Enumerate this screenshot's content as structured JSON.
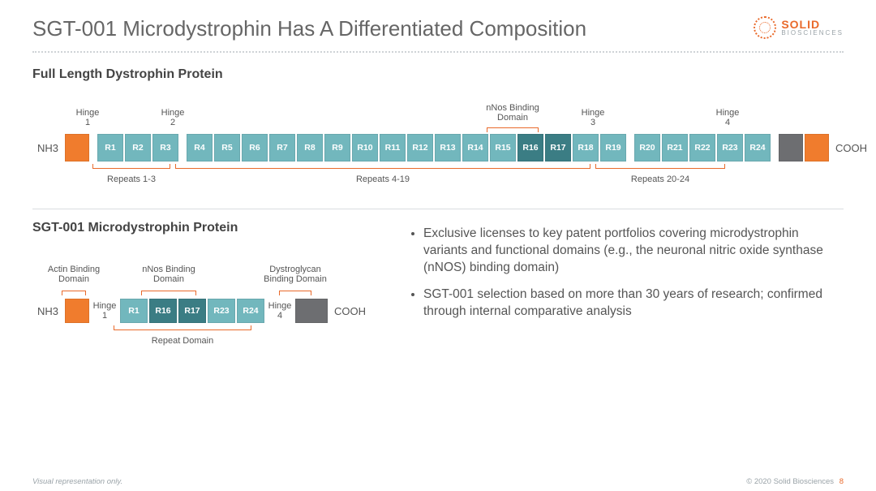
{
  "title": "SGT-001 Microdystrophin Has A Differentiated Composition",
  "logo": {
    "l1": "SOLID",
    "l2": "BIOSCIENCES"
  },
  "colors": {
    "orange": "#f07c2d",
    "grey": "#6d6e71",
    "teal": "#72b7bd",
    "teal_dark": "#3b7d84",
    "accent": "#e96a2b",
    "text": "#555555",
    "bg": "#ffffff"
  },
  "full": {
    "title": "Full Length Dystrophin Protein",
    "left_term": "NH3",
    "right_term": "COOH",
    "nnos_label": "nNos Binding Domain",
    "hinges": [
      "Hinge 1",
      "Hinge 2",
      "Hinge 3",
      "Hinge 4"
    ],
    "hinge1_lines": [
      "Hinge",
      "1"
    ],
    "hinge2_lines": [
      "Hinge",
      "2"
    ],
    "hinge3_lines": [
      "Hinge",
      "3"
    ],
    "hinge4_lines": [
      "Hinge",
      "4"
    ],
    "group_labels": [
      "Repeats 1-3",
      "Repeats 4-19",
      "Repeats 20-24"
    ],
    "repeats": [
      {
        "label": "R1",
        "dark": false
      },
      {
        "label": "R2",
        "dark": false
      },
      {
        "label": "R3",
        "dark": false
      },
      {
        "label": "R4",
        "dark": false
      },
      {
        "label": "R5",
        "dark": false
      },
      {
        "label": "R6",
        "dark": false
      },
      {
        "label": "R7",
        "dark": false
      },
      {
        "label": "R8",
        "dark": false
      },
      {
        "label": "R9",
        "dark": false
      },
      {
        "label": "R10",
        "dark": false
      },
      {
        "label": "R11",
        "dark": false
      },
      {
        "label": "R12",
        "dark": false
      },
      {
        "label": "R13",
        "dark": false
      },
      {
        "label": "R14",
        "dark": false
      },
      {
        "label": "R15",
        "dark": false
      },
      {
        "label": "R16",
        "dark": true
      },
      {
        "label": "R17",
        "dark": true
      },
      {
        "label": "R18",
        "dark": false
      },
      {
        "label": "R19",
        "dark": false
      },
      {
        "label": "R20",
        "dark": false
      },
      {
        "label": "R21",
        "dark": false
      },
      {
        "label": "R22",
        "dark": false
      },
      {
        "label": "R23",
        "dark": false
      },
      {
        "label": "R24",
        "dark": false
      }
    ],
    "layout": {
      "orange_w": 30,
      "grey_w": 30,
      "teal_w": 32,
      "gap_w": 6,
      "height": 34
    }
  },
  "micro": {
    "title": "SGT-001 Microdystrophin Protein",
    "left_term": "NH3",
    "right_term": "COOH",
    "top_labels": {
      "actin": "Actin Binding Domain",
      "actin_l1": "Actin Binding",
      "actin_l2": "Domain",
      "nnos": "nNos Binding Domain",
      "nnos_l1": "nNos Binding",
      "nnos_l2": "Domain",
      "dgc": "Dystroglycan Binding Domain",
      "dgc_l1": "Dystroglycan",
      "dgc_l2": "Binding Domain"
    },
    "hinge1_lines": [
      "Hinge",
      "1"
    ],
    "hinge4_lines": [
      "Hinge",
      "4"
    ],
    "repeat_domain_label": "Repeat Domain",
    "repeats": [
      {
        "label": "R1",
        "dark": false
      },
      {
        "label": "R16",
        "dark": true
      },
      {
        "label": "R17",
        "dark": true
      },
      {
        "label": "R23",
        "dark": false
      },
      {
        "label": "R24",
        "dark": false
      }
    ],
    "layout": {
      "orange_w": 30,
      "grey_w": 40,
      "teal_w": 34,
      "gap_w": 6,
      "height": 30
    }
  },
  "bullets": [
    "Exclusive licenses to key patent portfolios covering microdystrophin variants and functional domains (e.g., the neuronal nitric oxide synthase (nNOS) binding domain)",
    "SGT-001 selection based on more than 30 years of research; confirmed through internal comparative analysis"
  ],
  "footer": {
    "disclaimer": "Visual representation only.",
    "copyright": "© 2020 Solid Biosciences",
    "page": "8"
  }
}
